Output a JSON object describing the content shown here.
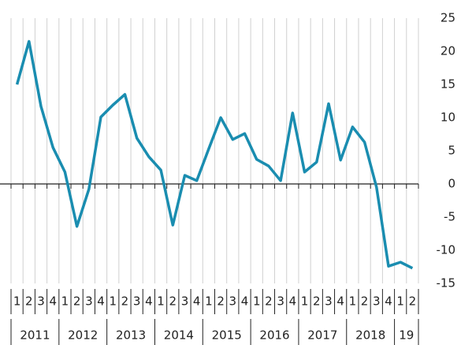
{
  "chart_data": {
    "type": "line",
    "categories": [
      "1",
      "2",
      "3",
      "4",
      "1",
      "2",
      "3",
      "4",
      "1",
      "2",
      "3",
      "4",
      "1",
      "2",
      "3",
      "4",
      "1",
      "2",
      "3",
      "4",
      "1",
      "2",
      "3",
      "4",
      "1",
      "2",
      "3",
      "4",
      "1",
      "2",
      "3",
      "4",
      "1",
      "2"
    ],
    "years": [
      "2011",
      "2012",
      "2013",
      "2014",
      "2015",
      "2016",
      "2017",
      "2018",
      "19"
    ],
    "series": [
      {
        "color": "#1a8db0",
        "values": [
          15,
          21.5,
          11.7,
          5.5,
          1.8,
          -6.4,
          -0.8,
          10.1,
          11.9,
          13.5,
          6.9,
          4.1,
          2.1,
          -6.2,
          1.3,
          0.5,
          5.3,
          10.0,
          6.7,
          7.6,
          3.7,
          2.7,
          0.5,
          10.7,
          1.8,
          3.3,
          12.1,
          3.6,
          8.6,
          6.3,
          -0.5,
          -12.4,
          -11.8,
          -12.7
        ]
      }
    ],
    "ylim": [
      -15,
      25
    ],
    "yticks": [
      -15,
      -10,
      -5,
      0,
      5,
      10,
      15,
      20,
      25
    ],
    "grid": true
  }
}
